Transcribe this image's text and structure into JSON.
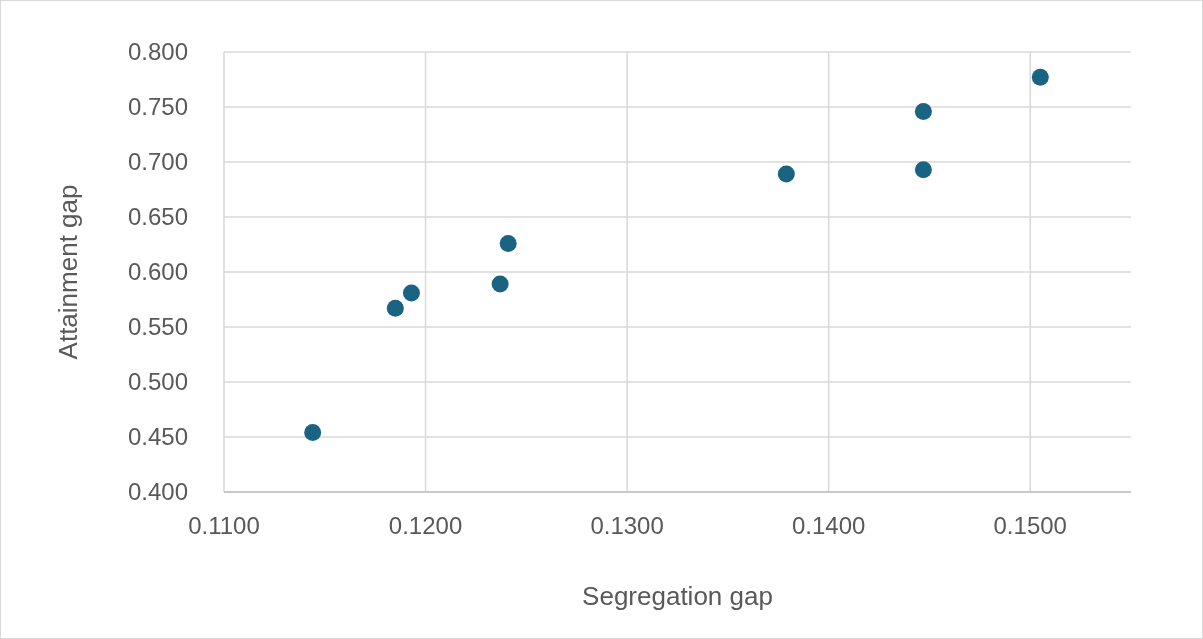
{
  "chart_data": {
    "type": "scatter",
    "xlabel": "Segregation gap",
    "ylabel": "Attainment gap",
    "x": [
      0.1144,
      0.1185,
      0.1193,
      0.1237,
      0.1241,
      0.1379,
      0.1447,
      0.1447,
      0.1505
    ],
    "series": [
      {
        "color": "#1b6383",
        "values": [
          0.454,
          0.567,
          0.581,
          0.589,
          0.626,
          0.689,
          0.746,
          0.693,
          0.777
        ]
      }
    ],
    "xlim": [
      0.11,
      0.155
    ],
    "xticks": [
      {
        "value": 0.11,
        "label": "0.1100"
      },
      {
        "value": 0.12,
        "label": "0.1200"
      },
      {
        "value": 0.13,
        "label": "0.1300"
      },
      {
        "value": 0.14,
        "label": "0.1400"
      },
      {
        "value": 0.15,
        "label": "0.1500"
      }
    ],
    "ylim": [
      0.4,
      0.8
    ],
    "yticks": [
      {
        "value": 0.4,
        "label": "0.400"
      },
      {
        "value": 0.45,
        "label": "0.450"
      },
      {
        "value": 0.5,
        "label": "0.500"
      },
      {
        "value": 0.55,
        "label": "0.550"
      },
      {
        "value": 0.6,
        "label": "0.600"
      },
      {
        "value": 0.65,
        "label": "0.650"
      },
      {
        "value": 0.7,
        "label": "0.700"
      },
      {
        "value": 0.75,
        "label": "0.750"
      },
      {
        "value": 0.8,
        "label": "0.800"
      }
    ],
    "grid": true,
    "marker": "circle"
  }
}
